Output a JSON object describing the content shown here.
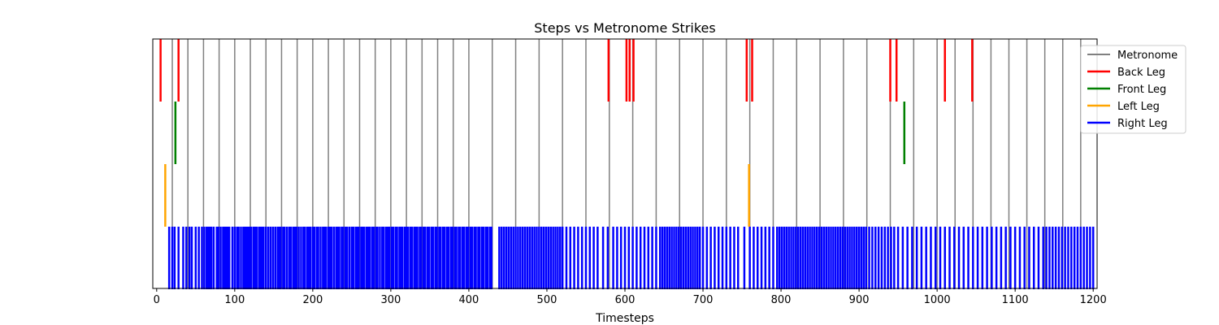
{
  "chart_data": {
    "type": "event",
    "title": "Steps vs Metronome Strikes",
    "xlabel": "Timesteps",
    "ylabel": "",
    "xlim": [
      -5,
      1205
    ],
    "grid": false,
    "legend_position": "upper-right",
    "x_ticks": [
      0,
      100,
      200,
      300,
      400,
      500,
      600,
      700,
      800,
      900,
      1000,
      1100,
      1200
    ],
    "series": [
      {
        "name": "Metronome",
        "color": "#808080",
        "row": "full",
        "x": [
          20,
          40,
          60,
          80,
          100,
          120,
          140,
          160,
          180,
          200,
          220,
          240,
          260,
          280,
          300,
          320,
          340,
          360,
          380,
          400,
          430,
          460,
          490,
          520,
          550,
          580,
          610,
          640,
          670,
          700,
          730,
          760,
          790,
          820,
          850,
          880,
          910,
          940,
          970,
          1000,
          1023,
          1046,
          1069,
          1092,
          1115,
          1138,
          1161,
          1184
        ]
      },
      {
        "name": "Back Leg",
        "color": "#ff0000",
        "row": 0,
        "x": [
          5,
          28,
          579,
          602,
          606,
          611,
          756,
          763,
          940,
          948,
          1010,
          1045
        ]
      },
      {
        "name": "Front Leg",
        "color": "#008000",
        "row": 1,
        "x": [
          24,
          958
        ]
      },
      {
        "name": "Left Leg",
        "color": "#ffa500",
        "row": 2,
        "x": [
          11,
          759
        ]
      },
      {
        "name": "Right Leg",
        "color": "#0000ff",
        "row": 3,
        "x": [
          16,
          20,
          23,
          28,
          34,
          38,
          42,
          45,
          50,
          54,
          58,
          61,
          64,
          66,
          68,
          70,
          73,
          77,
          79,
          82,
          85,
          87,
          89,
          91,
          93,
          97,
          100,
          103,
          105,
          108,
          111,
          113,
          115,
          117,
          119,
          121,
          124,
          126,
          128,
          131,
          133,
          135,
          137,
          140,
          143,
          146,
          149,
          152,
          155,
          157,
          159,
          162,
          164,
          167,
          170,
          172,
          175,
          177,
          179,
          182,
          185,
          188,
          190,
          193,
          195,
          197,
          200,
          202,
          205,
          207,
          210,
          213,
          215,
          217,
          220,
          222,
          224,
          227,
          230,
          232,
          234,
          237,
          239,
          242,
          244,
          247,
          250,
          252,
          255,
          257,
          259,
          262,
          264,
          266,
          269,
          271,
          273,
          276,
          278,
          281,
          283,
          286,
          289,
          291,
          294,
          296,
          298,
          301,
          303,
          306,
          308,
          311,
          313,
          315,
          318,
          320,
          322,
          325,
          327,
          330,
          332,
          334,
          337,
          339,
          342,
          344,
          347,
          349,
          352,
          354,
          357,
          359,
          362,
          364,
          367,
          369,
          372,
          374,
          377,
          379,
          382,
          384,
          387,
          389,
          392,
          394,
          397,
          399,
          402,
          404,
          407,
          409,
          412,
          414,
          417,
          419,
          422,
          424,
          427,
          429,
          439,
          442,
          445,
          448,
          451,
          454,
          457,
          460,
          463,
          466,
          469,
          472,
          475,
          478,
          481,
          484,
          487,
          490,
          493,
          496,
          499,
          502,
          505,
          508,
          511,
          514,
          517,
          520,
          525,
          530,
          535,
          540,
          545,
          550,
          555,
          560,
          565,
          572,
          578,
          585,
          590,
          595,
          600,
          605,
          610,
          615,
          620,
          625,
          630,
          635,
          640,
          645,
          648,
          651,
          654,
          657,
          660,
          663,
          666,
          669,
          672,
          675,
          678,
          681,
          684,
          687,
          690,
          693,
          696,
          700,
          705,
          710,
          715,
          720,
          725,
          730,
          735,
          740,
          745,
          753,
          760,
          765,
          770,
          775,
          780,
          785,
          790,
          795,
          798,
          801,
          804,
          807,
          810,
          813,
          816,
          819,
          822,
          825,
          828,
          831,
          834,
          837,
          840,
          843,
          846,
          849,
          852,
          855,
          858,
          861,
          864,
          867,
          870,
          873,
          876,
          879,
          882,
          885,
          888,
          891,
          894,
          897,
          900,
          903,
          906,
          909,
          913,
          917,
          921,
          925,
          929,
          933,
          937,
          941,
          945,
          950,
          956,
          962,
          968,
          974,
          980,
          986,
          992,
          998,
          1004,
          1010,
          1016,
          1022,
          1028,
          1034,
          1040,
          1046,
          1052,
          1058,
          1064,
          1070,
          1076,
          1082,
          1088,
          1094,
          1100,
          1106,
          1112,
          1118,
          1124,
          1130,
          1136,
          1140,
          1144,
          1148,
          1152,
          1156,
          1160,
          1164,
          1168,
          1172,
          1176,
          1180,
          1184,
          1188,
          1192,
          1196,
          1200
        ]
      }
    ]
  }
}
